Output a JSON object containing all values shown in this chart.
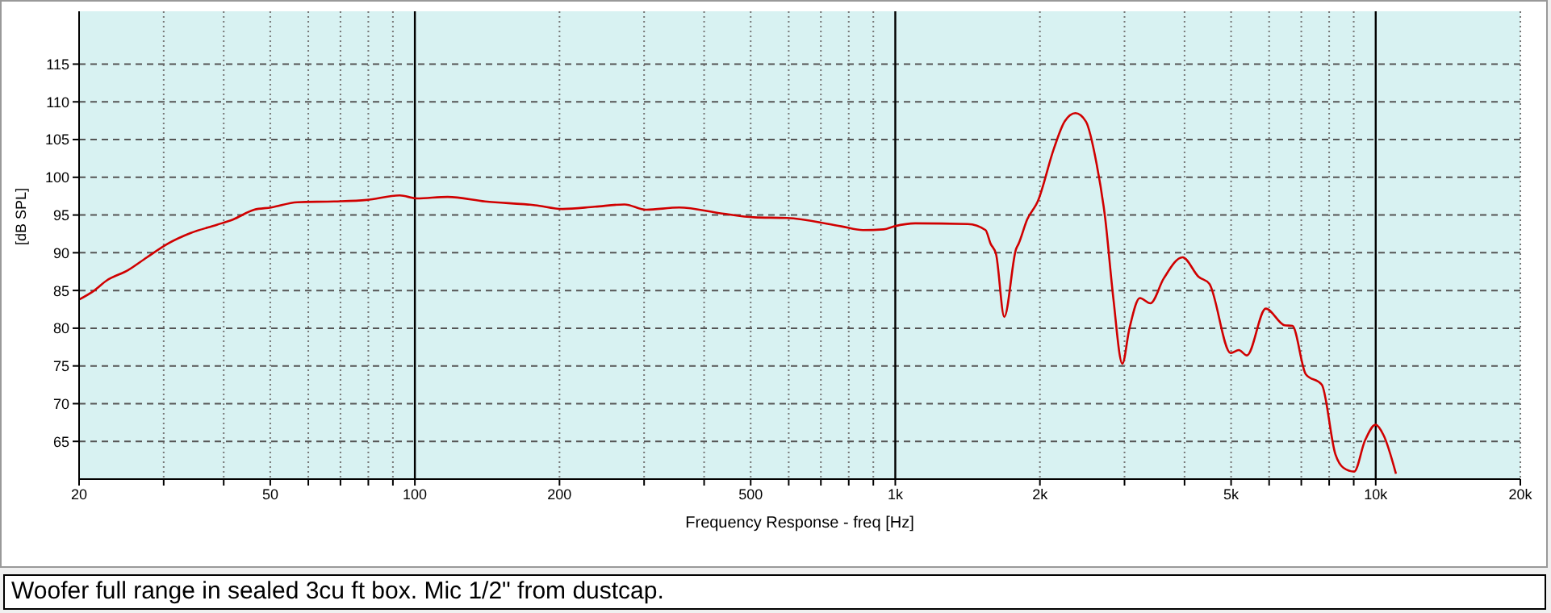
{
  "chart_data": {
    "type": "line",
    "xlabel": "Frequency Response - freq [Hz]",
    "ylabel": "[dB SPL]",
    "annotations": [
      "Woofer full range in sealed 3cu ft box. Mic 1/2\" from dustcap."
    ],
    "log": "x",
    "grid": true,
    "marker": "none",
    "line_style": "solid",
    "xlim": [
      20,
      20000
    ],
    "ylim": [
      60,
      122
    ],
    "xticks": [
      20,
      {
        "value": 30,
        "label": null
      },
      {
        "value": 40,
        "label": null
      },
      50,
      {
        "value": 60,
        "label": null
      },
      {
        "value": 70,
        "label": null
      },
      {
        "value": 80,
        "label": null
      },
      {
        "value": 90,
        "label": null
      },
      100,
      200,
      {
        "value": 300,
        "label": null
      },
      {
        "value": 400,
        "label": null
      },
      500,
      {
        "value": 600,
        "label": null
      },
      {
        "value": 700,
        "label": null
      },
      {
        "value": 800,
        "label": null
      },
      {
        "value": 900,
        "label": null
      },
      {
        "value": 1000,
        "label": "1k"
      },
      {
        "value": 2000,
        "label": "2k"
      },
      {
        "value": 3000,
        "label": null
      },
      {
        "value": 4000,
        "label": null
      },
      {
        "value": 5000,
        "label": "5k"
      },
      {
        "value": 6000,
        "label": null
      },
      {
        "value": 7000,
        "label": null
      },
      {
        "value": 8000,
        "label": null
      },
      {
        "value": 9000,
        "label": null
      },
      {
        "value": 10000,
        "label": "10k"
      },
      {
        "value": 20000,
        "label": "20k"
      }
    ],
    "yticks": [
      65,
      70,
      75,
      80,
      85,
      90,
      95,
      100,
      105,
      110,
      115
    ],
    "series": [
      {
        "color": "#d00000",
        "x": [
          20,
          21.4,
          22.8,
          25.3,
          27.7,
          30.6,
          34.1,
          38.7,
          41.8,
          46.3,
          50.2,
          56.9,
          68,
          79.4,
          93,
          101,
          117,
          140,
          178,
          203,
          237,
          273,
          303,
          355,
          436,
          508,
          595,
          772,
          856,
          946,
          995,
          1100,
          1415,
          1541,
          1579,
          1621,
          1686,
          1784,
          1806,
          1881,
          1979,
          2141,
          2252,
          2371,
          2493,
          2624,
          2733,
          2842,
          2969,
          3070,
          3229,
          3396,
          3621,
          3962,
          4281,
          4504,
          4990,
          5188,
          5394,
          5904,
          6456,
          6708,
          7153,
          7724,
          8242,
          8567,
          9020,
          9497,
          9994,
          10387,
          11020
        ],
        "values": [
          83.8,
          84.9,
          86.3,
          87.7,
          89.4,
          91.2,
          92.6,
          93.7,
          94.4,
          95.7,
          96.0,
          96.7,
          96.8,
          97.0,
          97.6,
          97.2,
          97.4,
          96.8,
          96.3,
          95.8,
          96.1,
          96.4,
          95.7,
          96.0,
          95.2,
          94.7,
          94.6,
          93.5,
          93.0,
          93.1,
          93.5,
          93.9,
          93.8,
          93.0,
          91.2,
          89.8,
          81.5,
          90.5,
          91.2,
          94.4,
          96.8,
          103.9,
          107.4,
          108.5,
          107.4,
          101.8,
          94.7,
          84.1,
          75.3,
          79.9,
          84.0,
          83.3,
          86.6,
          89.4,
          86.8,
          85.9,
          76.7,
          77.1,
          76.4,
          82.6,
          80.4,
          80.3,
          73.9,
          72.5,
          63.3,
          61.5,
          61.0,
          65.1,
          67.2,
          65.8,
          60.7
        ]
      }
    ]
  }
}
